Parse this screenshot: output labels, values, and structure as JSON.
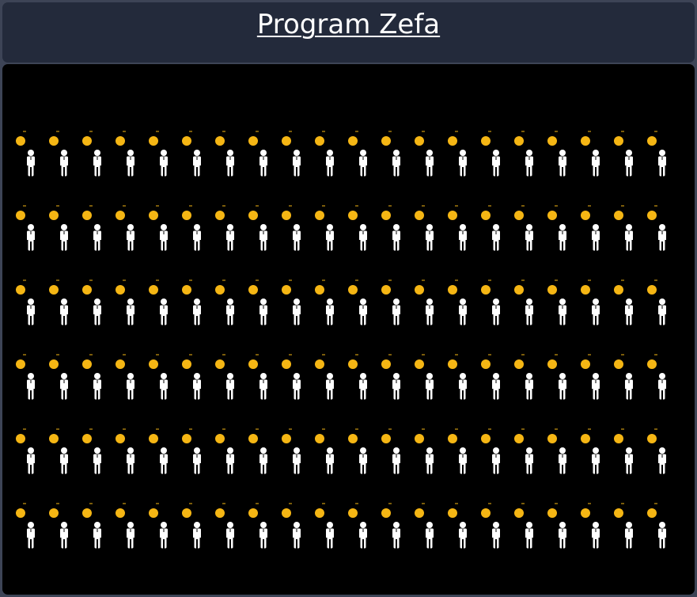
{
  "header": {
    "title": "Program Zefa"
  },
  "colors": {
    "header_bg": "#232a3b",
    "page_bg": "#3d4456",
    "panel_bg": "#000000",
    "dot": "#f5b614",
    "person": "#ffffff"
  },
  "grid": {
    "rows": 6,
    "columns": 20,
    "icons": [
      "sun-dot-icon",
      "person-icon"
    ]
  }
}
